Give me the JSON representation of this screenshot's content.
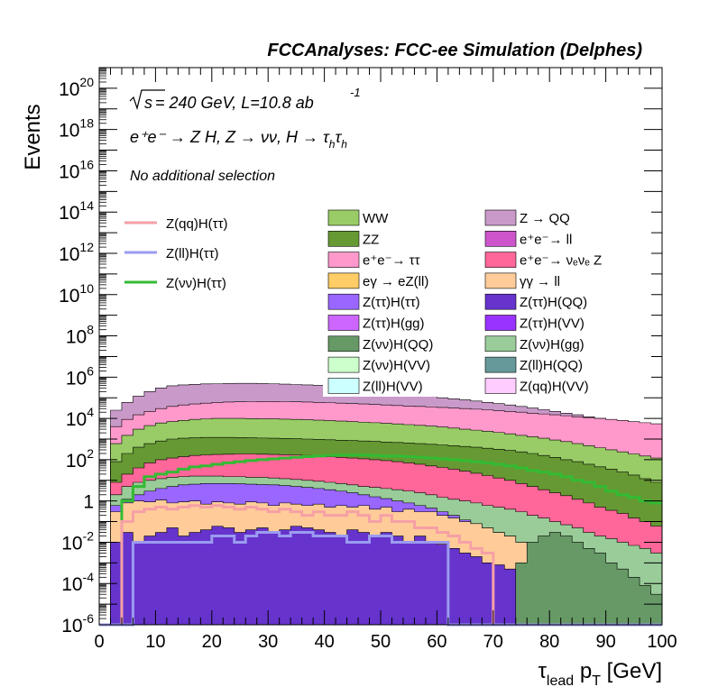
{
  "header": {
    "title": "FCCAnalyses: FCC-ee Simulation (Delphes)"
  },
  "annotations": {
    "energy_prefix": "s",
    "energy": " = 240 GeV, L=10.8 ab",
    "energy_exp": "-1",
    "process": "e⁺e⁻ → Z H, Z → νν, H → τ",
    "process_sub1": "h",
    "process_tau2": "τ",
    "process_sub2": "h",
    "selection": "No additional selection"
  },
  "legend": {
    "signals": [
      {
        "name": "Z(qq)H(ττ)",
        "color": "#f6a0a6"
      },
      {
        "name": "Z(ll)H(ττ)",
        "color": "#9b9bf0"
      },
      {
        "name": "Z(νν)H(ττ)",
        "color": "#33bb33"
      }
    ],
    "backgrounds": [
      {
        "name": "WW",
        "color": "#99cc66"
      },
      {
        "name": "Z → QQ",
        "color": "#c99ac9"
      },
      {
        "name": "ZZ",
        "color": "#669933"
      },
      {
        "name": "e⁺e⁻→ ll",
        "color": "#cc55cc"
      },
      {
        "name": "e⁺e⁻→ ττ",
        "color": "#ff99cc"
      },
      {
        "name": "e⁺e⁻→ νₑνₑ Z",
        "color": "#ff6699"
      },
      {
        "name": "eγ → eZ(ll)",
        "color": "#ffcc66"
      },
      {
        "name": "γγ → ll",
        "color": "#ffcc99"
      },
      {
        "name": "Z(ττ)H(ττ)",
        "color": "#9966ff"
      },
      {
        "name": "Z(ττ)H(QQ)",
        "color": "#6633cc"
      },
      {
        "name": "Z(ττ)H(gg)",
        "color": "#cc66ff"
      },
      {
        "name": "Z(ττ)H(VV)",
        "color": "#9933ff"
      },
      {
        "name": "Z(νν)H(QQ)",
        "color": "#669966"
      },
      {
        "name": "Z(νν)H(gg)",
        "color": "#99cc99"
      },
      {
        "name": "Z(νν)H(VV)",
        "color": "#ccffcc"
      },
      {
        "name": "Z(ll)H(QQ)",
        "color": "#669999"
      },
      {
        "name": "Z(ll)H(VV)",
        "color": "#ccffff"
      },
      {
        "name": "Z(qq)H(VV)",
        "color": "#ffccff"
      }
    ]
  },
  "chart_data": {
    "type": "area",
    "title": "FCCAnalyses: FCC-ee Simulation (Delphes)",
    "xlabel": "τ_lead p_T [GeV]",
    "ylabel": "Events",
    "xlim": [
      0,
      100
    ],
    "ylim": [
      1e-06,
      1e+21
    ],
    "yscale": "log",
    "x_ticks": [
      "0",
      "10",
      "20",
      "30",
      "40",
      "50",
      "60",
      "70",
      "80",
      "90",
      "100"
    ],
    "y_ticks": [
      "10^-6",
      "10^-4",
      "10^-2",
      "1",
      "10^2",
      "10^4",
      "10^6",
      "10^8",
      "10^10",
      "10^12",
      "10^14",
      "10^16",
      "10^18",
      "10^20"
    ],
    "legend_position": "top-right",
    "bin_edges": [
      0,
      2,
      4,
      6,
      8,
      10,
      12,
      14,
      16,
      18,
      20,
      22,
      24,
      26,
      28,
      30,
      32,
      34,
      36,
      38,
      40,
      42,
      44,
      46,
      48,
      50,
      52,
      54,
      56,
      58,
      60,
      62,
      64,
      66,
      68,
      70,
      72,
      74,
      76,
      78,
      80,
      82,
      84,
      86,
      88,
      90,
      92,
      94,
      96,
      98,
      100
    ],
    "stack_totals": [
      1e-06,
      25000,
      60000,
      120000,
      200000,
      300000,
      380000,
      420000,
      450000,
      470000,
      480000,
      490000,
      500000,
      500000,
      490000,
      480000,
      460000,
      440000,
      420000,
      400000,
      370000,
      340000,
      310000,
      280000,
      250000,
      220000,
      190000,
      160000,
      140000,
      120000,
      100000,
      90000,
      80000,
      70000,
      60000,
      52000,
      45000,
      38000,
      32000,
      27000,
      22000,
      18000,
      15000,
      12000,
      10000,
      8000,
      6500,
      5000,
      4000,
      3000
    ],
    "stacked_bands": [
      {
        "name": "Z → QQ",
        "upper": [
          1e-06,
          25000,
          60000,
          120000,
          200000,
          300000,
          380000,
          420000,
          450000,
          470000,
          480000,
          490000,
          500000,
          500000,
          490000,
          480000,
          460000,
          440000,
          420000,
          400000,
          370000,
          340000,
          310000,
          280000,
          250000,
          220000,
          190000,
          160000,
          140000,
          120000,
          100000,
          90000,
          80000,
          70000,
          60000,
          52000,
          45000,
          38000,
          32000,
          27000,
          22000,
          18000,
          15000,
          12000,
          10000,
          8000,
          6500,
          5000,
          4000,
          3000
        ]
      },
      {
        "name": "e⁺e⁻→ ττ",
        "upper": [
          1e-06,
          4000,
          9000,
          15000,
          22000,
          30000,
          38000,
          45000,
          50000,
          55000,
          60000,
          62000,
          64000,
          65000,
          66000,
          66000,
          65000,
          64000,
          62000,
          60000,
          58000,
          55000,
          52000,
          50000,
          47000,
          45000,
          42000,
          40000,
          38000,
          36000,
          34000,
          32000,
          30000,
          28000,
          26000,
          24000,
          22000,
          20000,
          18000,
          16500,
          15000,
          13500,
          12000,
          11000,
          10000,
          9000,
          8000,
          7000,
          6200,
          5500
        ]
      },
      {
        "name": "WW",
        "upper": [
          1e-06,
          600,
          1500,
          3000,
          4500,
          6000,
          7000,
          8000,
          9000,
          9500,
          10000,
          10000,
          10000,
          9800,
          9600,
          9400,
          9200,
          9000,
          8600,
          8200,
          7800,
          7400,
          7000,
          6600,
          6200,
          5800,
          5400,
          5000,
          4600,
          4200,
          3800,
          3400,
          3000,
          2700,
          2400,
          2100,
          1800,
          1500,
          1300,
          1100,
          900,
          750,
          600,
          480,
          380,
          300,
          240,
          190,
          150,
          120
        ]
      },
      {
        "name": "ZZ",
        "upper": [
          1e-06,
          80,
          200,
          400,
          600,
          800,
          1000,
          1100,
          1150,
          1200,
          1200,
          1200,
          1180,
          1150,
          1120,
          1100,
          1070,
          1040,
          1000,
          960,
          920,
          880,
          840,
          800,
          760,
          720,
          680,
          640,
          600,
          560,
          520,
          480,
          440,
          400,
          360,
          320,
          280,
          240,
          200,
          160,
          130,
          100,
          80,
          60,
          45,
          35,
          25,
          18,
          12,
          8
        ]
      },
      {
        "name": "e⁺e⁻→ νₑνₑ Z",
        "upper": [
          1e-06,
          8,
          20,
          40,
          70,
          100,
          120,
          140,
          160,
          170,
          180,
          185,
          190,
          190,
          185,
          180,
          175,
          170,
          160,
          150,
          140,
          130,
          120,
          110,
          100,
          90,
          80,
          70,
          60,
          50,
          42,
          35,
          28,
          22,
          17,
          13,
          10,
          7,
          5,
          3.5,
          2.5,
          1.8,
          1.2,
          0.8,
          0.5,
          0.35,
          0.25,
          0.15,
          0.1,
          0.06
        ]
      },
      {
        "name": "Z(νν)H(gg)",
        "upper": [
          1e-06,
          2,
          5,
          8,
          10,
          12,
          14,
          15,
          16,
          16,
          16,
          15,
          15,
          14,
          14,
          13,
          12,
          11,
          10,
          9,
          8,
          7,
          6,
          5,
          4.5,
          4,
          3.5,
          3,
          2.5,
          2,
          1.5,
          1.2,
          1,
          0.8,
          0.6,
          0.5,
          0.4,
          0.3,
          0.2,
          0.15,
          0.1,
          0.07,
          0.05,
          0.03,
          0.02,
          0.015,
          0.01,
          0.007,
          0.005,
          0.003
        ]
      },
      {
        "name": "Z(ττ)H(ττ)",
        "upper": [
          1e-06,
          0.6,
          1.2,
          2,
          3,
          4,
          5,
          6,
          6.5,
          7,
          7,
          7,
          6.8,
          6.5,
          6.2,
          6,
          5.5,
          5,
          4.5,
          4,
          3.5,
          3,
          2.5,
          2,
          1.6,
          1.3,
          1,
          0.8,
          0.6,
          0.45,
          0.3,
          0.2,
          0.12,
          0.08,
          0.05,
          0.03,
          0.02,
          0.01,
          0.006,
          0.004,
          0.002,
          0.001,
          0.0008,
          0.0005,
          0.0003,
          0.0002,
          0.0001,
          6e-05,
          4e-05,
          2e-05
        ]
      },
      {
        "name": "γγ → ll",
        "upper": [
          1e-06,
          0.3,
          0.8,
          1,
          0.9,
          1.1,
          0.8,
          0.9,
          1,
          0.7,
          0.9,
          0.8,
          0.7,
          0.9,
          0.8,
          0.6,
          0.8,
          0.7,
          0.6,
          0.7,
          0.5,
          0.6,
          0.5,
          0.6,
          0.4,
          0.5,
          0.3,
          0.4,
          0.3,
          0.3,
          0.2,
          0.15,
          0.1,
          0.08,
          0.05,
          0.03,
          0.02,
          0.01,
          0.005,
          0.003,
          0.002,
          0.001,
          0.0005,
          0.0003,
          0.0002,
          0.0001,
          5e-05,
          3e-05,
          2e-05,
          1e-05
        ]
      },
      {
        "name": "Z(ττ)H(QQ)",
        "upper": [
          1e-06,
          0.01,
          0.03,
          0.01,
          0.02,
          0.03,
          0.05,
          0.02,
          0.03,
          0.04,
          0.06,
          0.05,
          0.03,
          0.04,
          0.05,
          0.03,
          0.04,
          0.06,
          0.05,
          0.04,
          0.03,
          0.02,
          0.04,
          0.03,
          0.02,
          0.03,
          0.02,
          0.01,
          0.02,
          0.01,
          0.008,
          0.005,
          0.003,
          0.002,
          0.001,
          0.0008,
          0.0005,
          0.0003,
          0.0002,
          0.0001,
          8e-05,
          5e-05,
          3e-05,
          2e-05,
          1e-05,
          8e-06,
          5e-06,
          3e-06,
          2e-06,
          1e-06
        ]
      },
      {
        "name": "Z(νν)H(QQ)",
        "upper": [
          1e-06,
          1e-06,
          1e-06,
          1e-06,
          1e-06,
          1e-06,
          1e-06,
          1e-06,
          1e-06,
          1e-06,
          1e-06,
          1e-06,
          1e-06,
          1e-06,
          1e-06,
          1e-06,
          1e-06,
          1e-06,
          1e-06,
          1e-06,
          1e-06,
          1e-06,
          1e-06,
          1e-06,
          1e-06,
          1e-06,
          1e-06,
          1e-06,
          1e-06,
          1e-06,
          1e-06,
          1e-06,
          1e-06,
          1e-06,
          1e-06,
          1e-06,
          1e-06,
          0.001,
          0.01,
          0.02,
          0.03,
          0.02,
          0.01,
          0.005,
          0.003,
          0.001,
          0.0005,
          0.0002,
          8e-05,
          3e-05
        ]
      }
    ],
    "signal_lines": [
      {
        "name": "Z(νν)H(ττ)",
        "values": [
          1e-06,
          1e-06,
          1,
          5,
          15,
          20,
          25,
          35,
          45,
          50,
          60,
          70,
          80,
          90,
          100,
          110,
          120,
          130,
          140,
          150,
          160,
          170,
          170,
          170,
          160,
          150,
          150,
          140,
          130,
          120,
          110,
          100,
          90,
          80,
          70,
          60,
          50,
          40,
          30,
          25,
          20,
          15,
          10,
          8,
          5,
          3,
          2,
          1.5,
          1,
          0.8
        ]
      },
      {
        "name": "Z(qq)H(ττ)",
        "values": [
          1e-06,
          1e-06,
          0.1,
          0.3,
          0.4,
          0.5,
          0.4,
          0.5,
          0.6,
          0.5,
          0.6,
          0.5,
          0.4,
          0.5,
          0.4,
          0.3,
          0.4,
          0.3,
          0.2,
          0.3,
          0.2,
          0.2,
          0.3,
          0.2,
          0.1,
          0.2,
          0.1,
          0.1,
          0.05,
          0.05,
          0.03,
          0.02,
          0.01,
          0.005,
          0.003,
          1e-06,
          1e-06,
          1e-06,
          1e-06,
          1e-06,
          1e-06,
          1e-06,
          1e-06,
          1e-06,
          1e-06,
          1e-06,
          1e-06,
          1e-06,
          1e-06,
          1e-06
        ]
      },
      {
        "name": "Z(ll)H(ττ)",
        "values": [
          1e-06,
          1e-06,
          1e-06,
          0.01,
          0.01,
          0.01,
          0.01,
          0.01,
          0.01,
          0.01,
          0.02,
          0.02,
          0.01,
          0.02,
          0.03,
          0.03,
          0.02,
          0.03,
          0.03,
          0.02,
          0.02,
          0.02,
          0.01,
          0.01,
          0.02,
          0.02,
          0.01,
          0.01,
          0.01,
          0.01,
          0.01,
          1e-06,
          1e-06,
          1e-06,
          1e-06,
          1e-06,
          1e-06,
          1e-06,
          1e-06,
          1e-06,
          1e-06,
          1e-06,
          1e-06,
          1e-06,
          1e-06,
          1e-06,
          1e-06,
          1e-06,
          1e-06,
          1e-06
        ]
      }
    ]
  }
}
